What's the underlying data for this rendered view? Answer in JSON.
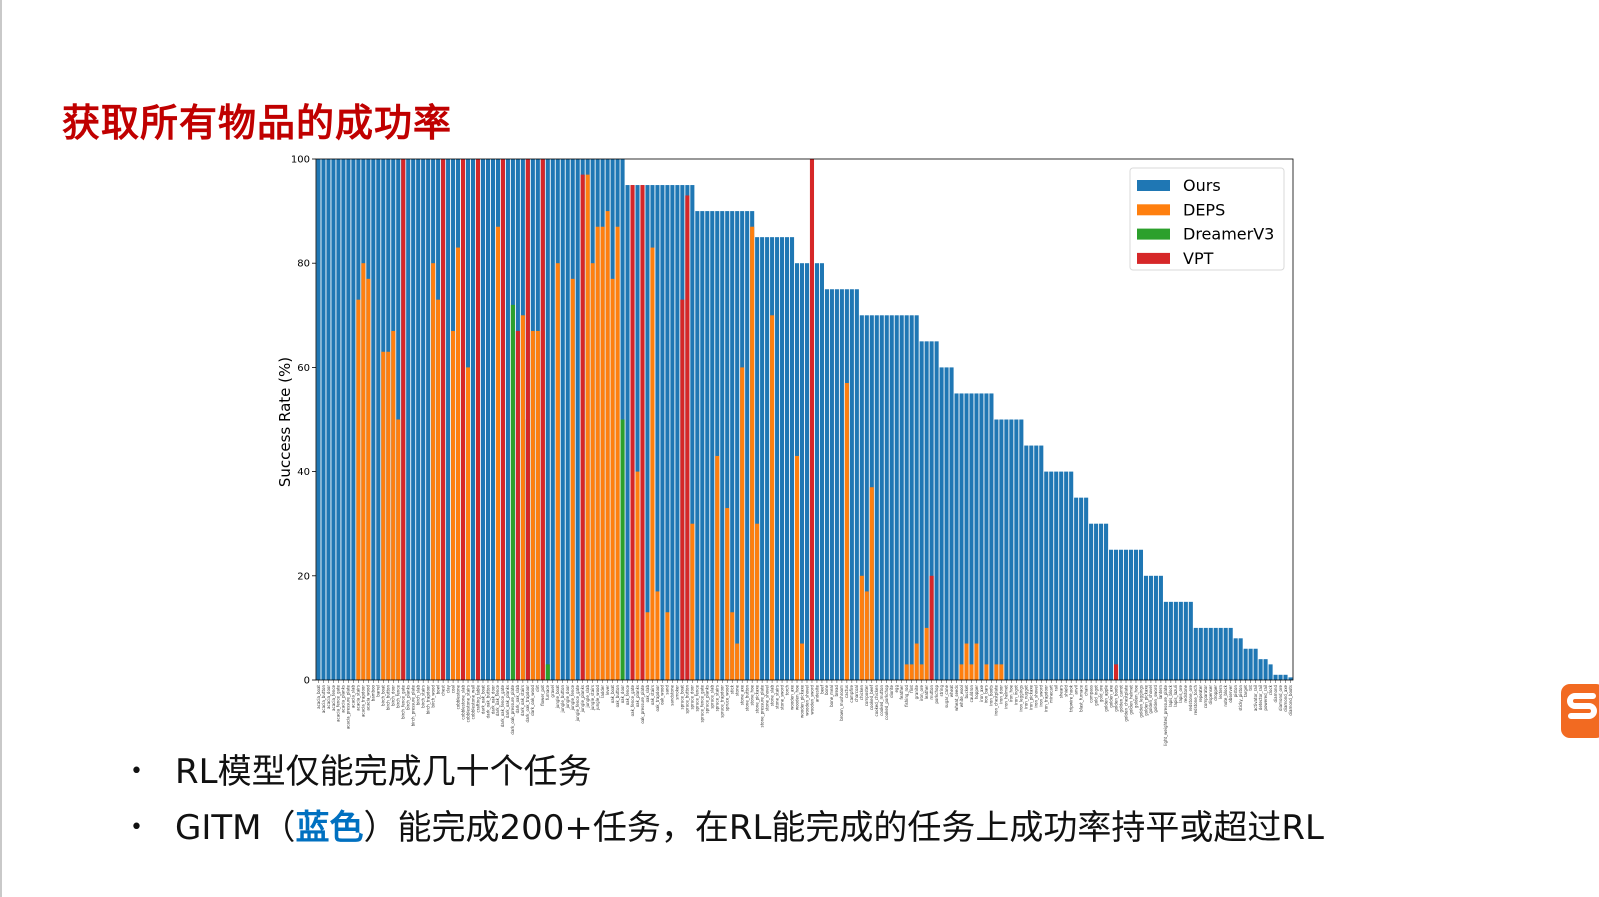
{
  "slide": {
    "title": "获取所有物品的成功率",
    "bullets": [
      {
        "text": "RL模型仅能完成几十个任务"
      },
      {
        "prefix": "GITM（",
        "highlight": "蓝色",
        "suffix": "）能完成200+任务，在RL能完成的任务上成功率持平或超过RL"
      }
    ],
    "bullet_symbol": "•",
    "highlight_color": "#0070c0",
    "title_color": "#c00000",
    "logo_icon": "sogou-logo-icon"
  },
  "chart_data": {
    "type": "bar",
    "ylabel": "Success Rate (%)",
    "xlabel": "",
    "ylim": [
      0,
      100
    ],
    "yticks": [
      0,
      20,
      40,
      60,
      80,
      100
    ],
    "legend_position": "top-right",
    "series": [
      {
        "name": "Ours",
        "color": "#1f77b4"
      },
      {
        "name": "DEPS",
        "color": "#ff7f0e"
      },
      {
        "name": "DreamerV3",
        "color": "#2ca02c"
      },
      {
        "name": "VPT",
        "color": "#d62728"
      }
    ],
    "ours_levels": [
      {
        "value": 100,
        "count": 62
      },
      {
        "value": 95,
        "count": 14
      },
      {
        "value": 90,
        "count": 12
      },
      {
        "value": 85,
        "count": 8
      },
      {
        "value": 80,
        "count": 6
      },
      {
        "value": 75,
        "count": 7
      },
      {
        "value": 70,
        "count": 12
      },
      {
        "value": 65,
        "count": 4
      },
      {
        "value": 60,
        "count": 3
      },
      {
        "value": 55,
        "count": 8
      },
      {
        "value": 50,
        "count": 6
      },
      {
        "value": 45,
        "count": 4
      },
      {
        "value": 40,
        "count": 6
      },
      {
        "value": 35,
        "count": 3
      },
      {
        "value": 30,
        "count": 4
      },
      {
        "value": 25,
        "count": 7
      },
      {
        "value": 20,
        "count": 4
      },
      {
        "value": 15,
        "count": 6
      },
      {
        "value": 10,
        "count": 8
      },
      {
        "value": 8,
        "count": 2
      },
      {
        "value": 6,
        "count": 3
      },
      {
        "value": 4,
        "count": 2
      },
      {
        "value": 3,
        "count": 1
      },
      {
        "value": 1,
        "count": 3
      },
      {
        "value": 0.5,
        "count": 1
      }
    ],
    "deps_values": [
      {
        "index": 8,
        "value": 73
      },
      {
        "index": 9,
        "value": 80
      },
      {
        "index": 10,
        "value": 77
      },
      {
        "index": 13,
        "value": 63
      },
      {
        "index": 14,
        "value": 63
      },
      {
        "index": 15,
        "value": 67
      },
      {
        "index": 16,
        "value": 50
      },
      {
        "index": 23,
        "value": 80
      },
      {
        "index": 24,
        "value": 73
      },
      {
        "index": 27,
        "value": 67
      },
      {
        "index": 28,
        "value": 83
      },
      {
        "index": 30,
        "value": 60
      },
      {
        "index": 36,
        "value": 87
      },
      {
        "index": 41,
        "value": 70
      },
      {
        "index": 43,
        "value": 67
      },
      {
        "index": 44,
        "value": 67
      },
      {
        "index": 45,
        "value": 67
      },
      {
        "index": 48,
        "value": 80
      },
      {
        "index": 51,
        "value": 77
      },
      {
        "index": 54,
        "value": 97
      },
      {
        "index": 55,
        "value": 80
      },
      {
        "index": 56,
        "value": 87
      },
      {
        "index": 57,
        "value": 87
      },
      {
        "index": 58,
        "value": 90
      },
      {
        "index": 59,
        "value": 77
      },
      {
        "index": 60,
        "value": 87
      },
      {
        "index": 64,
        "value": 40
      },
      {
        "index": 66,
        "value": 13
      },
      {
        "index": 67,
        "value": 83
      },
      {
        "index": 68,
        "value": 17
      },
      {
        "index": 70,
        "value": 13
      },
      {
        "index": 75,
        "value": 30
      },
      {
        "index": 80,
        "value": 43
      },
      {
        "index": 82,
        "value": 33
      },
      {
        "index": 83,
        "value": 13
      },
      {
        "index": 84,
        "value": 7
      },
      {
        "index": 85,
        "value": 60
      },
      {
        "index": 87,
        "value": 87
      },
      {
        "index": 88,
        "value": 30
      },
      {
        "index": 91,
        "value": 70
      },
      {
        "index": 96,
        "value": 43
      },
      {
        "index": 97,
        "value": 7
      },
      {
        "index": 106,
        "value": 57
      },
      {
        "index": 109,
        "value": 20
      },
      {
        "index": 110,
        "value": 17
      },
      {
        "index": 111,
        "value": 37
      },
      {
        "index": 118,
        "value": 3
      },
      {
        "index": 119,
        "value": 3
      },
      {
        "index": 120,
        "value": 7
      },
      {
        "index": 121,
        "value": 3
      },
      {
        "index": 122,
        "value": 10
      },
      {
        "index": 129,
        "value": 3
      },
      {
        "index": 130,
        "value": 7
      },
      {
        "index": 131,
        "value": 3
      },
      {
        "index": 132,
        "value": 7
      },
      {
        "index": 134,
        "value": 3
      },
      {
        "index": 136,
        "value": 3
      },
      {
        "index": 137,
        "value": 3
      }
    ],
    "dreamerv3_values": [
      {
        "index": 39,
        "value": 72
      },
      {
        "index": 42,
        "value": 50
      },
      {
        "index": 46,
        "value": 3
      },
      {
        "index": 61,
        "value": 50
      }
    ],
    "vpt_values": [
      {
        "index": 17,
        "value": 100
      },
      {
        "index": 25,
        "value": 100
      },
      {
        "index": 29,
        "value": 100
      },
      {
        "index": 32,
        "value": 100
      },
      {
        "index": 37,
        "value": 100
      },
      {
        "index": 40,
        "value": 67
      },
      {
        "index": 42,
        "value": 100
      },
      {
        "index": 45,
        "value": 100
      },
      {
        "index": 53,
        "value": 97
      },
      {
        "index": 63,
        "value": 95
      },
      {
        "index": 65,
        "value": 95
      },
      {
        "index": 73,
        "value": 73
      },
      {
        "index": 74,
        "value": 93
      },
      {
        "index": 99,
        "value": 100
      },
      {
        "index": 123,
        "value": 20
      },
      {
        "index": 160,
        "value": 3
      }
    ],
    "categories": [
      "acacia_boat",
      "acacia_button",
      "acacia_door",
      "acacia_fence",
      "acacia_fence_gate",
      "acacia_planks",
      "acacia_pressure_plate",
      "acacia_slab",
      "acacia_stairs",
      "acacia_trapdoor",
      "acacia_wood",
      "bamboo",
      "barrel",
      "birch_boat",
      "birch_button",
      "birch_door",
      "birch_fence",
      "birch_fence_gate",
      "birch_planks",
      "birch_pressure_plate",
      "birch_slab",
      "birch_stairs",
      "birch_trapdoor",
      "birch_wood",
      "bowl",
      "chest",
      "clay",
      "coal",
      "cobblestone",
      "cobblestone_slab",
      "cobblestone_stairs",
      "cobblestone_wall",
      "crafting_table",
      "dark_oak_boat",
      "dark_oak_button",
      "dark_oak_door",
      "dark_oak_fence",
      "dark_oak_fence_gate",
      "dark_oak_planks",
      "dark_oak_pressure_plate",
      "dark_oak_slab",
      "dark_oak_stairs",
      "dark_oak_trapdoor",
      "dark_oak_wood",
      "dirt",
      "flower_pot",
      "furnace",
      "gravel",
      "jungle_boat",
      "jungle_button",
      "jungle_door",
      "jungle_fence",
      "jungle_fence_gate",
      "jungle_planks",
      "jungle_slab",
      "jungle_stairs",
      "jungle_wood",
      "ladder",
      "lever",
      "oak_boat",
      "oak_button",
      "oak_door",
      "oak_fence",
      "oak_fence_gate",
      "oak_planks",
      "oak_pressure_plate",
      "oak_slab",
      "oak_stairs",
      "oak_trapdoor",
      "oak_wood",
      "sand",
      "sandstone",
      "smoker",
      "spruce_boat",
      "spruce_button",
      "spruce_door",
      "spruce_fence",
      "spruce_fence_gate",
      "spruce_planks",
      "spruce_slab",
      "spruce_stairs",
      "spruce_trapdoor",
      "spruce_wood",
      "stick",
      "stone",
      "stone_axe",
      "stone_button",
      "stone_hoe",
      "stone_pickaxe",
      "stone_pressure_plate",
      "stone_shovel",
      "stone_slab",
      "stone_stairs",
      "stone_sword",
      "torch",
      "wooden_axe",
      "wooden_hoe",
      "wooden_pickaxe",
      "wooden_shovel",
      "wooden_sword",
      "andesite",
      "beef",
      "bone",
      "bone_meal",
      "bread",
      "brown_mushroom",
      "cactus",
      "campfire",
      "charcoal",
      "chicken",
      "composter",
      "cooked_beef",
      "cooked_chicken",
      "cooked_mutton",
      "cooked_porkchop",
      "diorite",
      "egg",
      "feather",
      "fishing_rod",
      "flint",
      "granite",
      "iron_ore",
      "leather",
      "mutton",
      "porkchop",
      "string",
      "sugar_cane",
      "wheat",
      "wheat_seeds",
      "white_wool",
      "bucket",
      "cauldron",
      "hopper",
      "iron_axe",
      "iron_bars",
      "iron_boots",
      "iron_chestplate",
      "iron_door",
      "iron_helmet",
      "iron_hoe",
      "iron_ingot",
      "iron_leggings",
      "iron_nugget",
      "iron_pickaxe",
      "iron_shovel",
      "iron_sword",
      "iron_trapdoor",
      "minecart",
      "rail",
      "shears",
      "shield",
      "tripwire_hook",
      "anvil",
      "blast_furnace",
      "chain",
      "compass",
      "gold_ingot",
      "gold_ore",
      "golden_apple",
      "golden_axe",
      "golden_boots",
      "golden_carrot",
      "golden_chestplate",
      "golden_helmet",
      "golden_hoe",
      "golden_leggings",
      "golden_pickaxe",
      "golden_shovel",
      "golden_sword",
      "lantern",
      "light_weighted_pressure_plate",
      "lapis_block",
      "lapis_lazuli",
      "lapis_ore",
      "redstone",
      "redstone_ore",
      "redstone_torch",
      "repeater",
      "comparator",
      "dispenser",
      "dropper",
      "lectern",
      "note_block",
      "observer",
      "piston",
      "sticky_piston",
      "target",
      "tnt",
      "activator_rail",
      "detector_rail",
      "powered_rail",
      "clock",
      "diamond",
      "diamond_ore",
      "diamond_axe",
      "diamond_boots",
      "diamond_chestplate",
      "diamond_helmet",
      "diamond_hoe",
      "diamond_leggings",
      "diamond_pickaxe",
      "diamond_shovel",
      "diamond_sword",
      "enchanting_table",
      "jukebox",
      "emerald",
      "emerald_ore",
      "obsidian",
      "book",
      "bookshelf",
      "paper",
      "map",
      "cartography_table",
      "fletching_table",
      "loom",
      "smithing_table",
      "stonecutter",
      "grindstone",
      "beehive",
      "painting",
      "item_frame",
      "armor_stand",
      "crossbow",
      "bow",
      "arrow",
      "spectral_arrow",
      "glass",
      "glass_bottle",
      "glass_pane",
      "bricks",
      "brick",
      "flower_pot_2",
      "slime_ball",
      "lead",
      "honeycomb",
      "candle",
      "scaffolding",
      "leather_boots",
      "leather_helmet",
      "leather_chestplate",
      "leather_leggings",
      "saddle",
      "name_tag",
      "cookie",
      "cake",
      "pumpkin_pie",
      "sugar",
      "snow_block",
      "rabbit_stew",
      "mushroom_stew",
      "beetroot_soup",
      "suspicious_stew",
      "dried_kelp",
      "golden_carrot_2",
      "mossy_cobblestone",
      "red_sandstone",
      "red_sand",
      "quartz",
      "enchanted_book",
      "ender_pearl",
      "eye_of_ender",
      "redstone_lamp",
      "daylight_detector",
      "diamond_block"
    ]
  }
}
